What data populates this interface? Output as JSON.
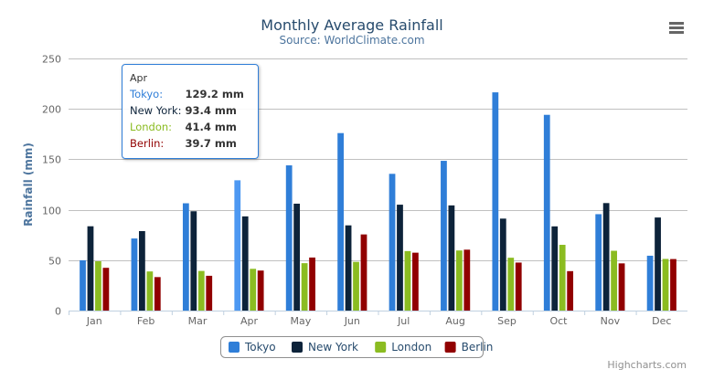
{
  "chart_data": {
    "type": "bar",
    "title": "Monthly Average Rainfall",
    "subtitle": "Source: WorldClimate.com",
    "xlabel": "",
    "ylabel": "Rainfall (mm)",
    "ylim": [
      0,
      250
    ],
    "yticks": [
      0,
      50,
      100,
      150,
      200,
      250
    ],
    "grid": true,
    "legend_position": "bottom",
    "categories": [
      "Jan",
      "Feb",
      "Mar",
      "Apr",
      "May",
      "Jun",
      "Jul",
      "Aug",
      "Sep",
      "Oct",
      "Nov",
      "Dec"
    ],
    "series": [
      {
        "name": "Tokyo",
        "color": "#2f7ed8",
        "values": [
          49.9,
          71.5,
          106.4,
          129.2,
          144.0,
          176.0,
          135.6,
          148.5,
          216.4,
          194.1,
          95.6,
          54.4
        ]
      },
      {
        "name": "New York",
        "color": "#0d233a",
        "values": [
          83.6,
          78.8,
          98.5,
          93.4,
          106.0,
          84.5,
          105.0,
          104.3,
          91.2,
          83.5,
          106.6,
          92.3
        ]
      },
      {
        "name": "London",
        "color": "#8bbc21",
        "values": [
          48.9,
          38.8,
          39.3,
          41.4,
          47.0,
          48.3,
          59.0,
          59.6,
          52.4,
          65.2,
          59.3,
          51.2
        ]
      },
      {
        "name": "Berlin",
        "color": "#910000",
        "values": [
          42.4,
          33.2,
          34.5,
          39.7,
          52.6,
          75.5,
          57.4,
          60.4,
          47.6,
          39.1,
          46.8,
          51.1
        ]
      }
    ],
    "tooltip": {
      "header": "Apr",
      "rows": [
        {
          "name": "Tokyo:",
          "value": "129.2 mm",
          "color": "#2f7ed8"
        },
        {
          "name": "New York:",
          "value": "93.4 mm",
          "color": "#0d233a"
        },
        {
          "name": "London:",
          "value": "41.4 mm",
          "color": "#8bbc21"
        },
        {
          "name": "Berlin:",
          "value": "39.7 mm",
          "color": "#910000"
        }
      ]
    }
  },
  "credits": "Highcharts.com",
  "menu_icon": "hamburger-menu-icon"
}
